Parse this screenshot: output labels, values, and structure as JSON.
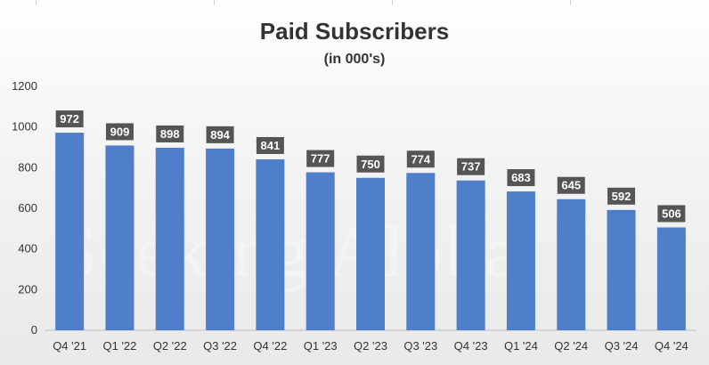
{
  "chart_data": {
    "type": "bar",
    "title": "Paid Subscribers",
    "subtitle": "(in 000's)",
    "categories": [
      "Q4 '21",
      "Q1 '22",
      "Q2 '22",
      "Q3 '22",
      "Q4 '22",
      "Q1 '23",
      "Q2 '23",
      "Q3 '23",
      "Q4 '23",
      "Q1 '24",
      "Q2 '24",
      "Q3 '24",
      "Q4 '24"
    ],
    "values": [
      972,
      909,
      898,
      894,
      841,
      777,
      750,
      774,
      737,
      683,
      645,
      592,
      506
    ],
    "ylim": [
      0,
      1200
    ],
    "yticks": [
      0,
      200,
      400,
      600,
      800,
      1000,
      1200
    ],
    "xlabel": "",
    "ylabel": "",
    "grid": false,
    "legend": "none",
    "data_labels": true,
    "watermark": "Seeking Alpha",
    "colors": {
      "bar": "#4f7fcb",
      "data_label_bg": "#555555",
      "data_label_text": "#ffffff"
    }
  }
}
